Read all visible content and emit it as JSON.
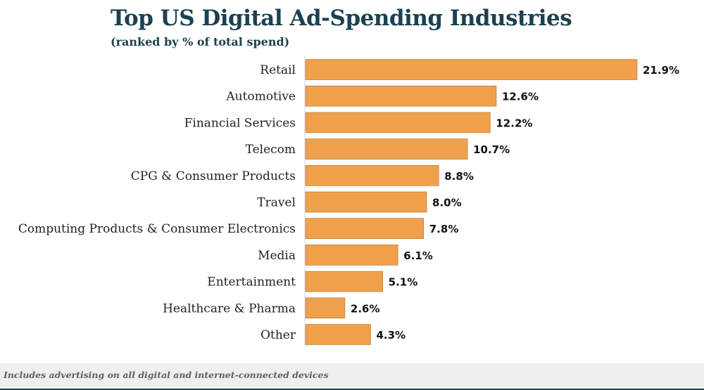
{
  "chart_data": {
    "type": "bar",
    "orientation": "horizontal",
    "title": "Top US Digital Ad-Spending Industries",
    "subtitle": "(ranked by % of total spend)",
    "categories": [
      "Retail",
      "Automotive",
      "Financial Services",
      "Telecom",
      "CPG & Consumer Products",
      "Travel",
      "Computing Products & Consumer Electronics",
      "Media",
      "Entertainment",
      "Healthcare & Pharma",
      "Other"
    ],
    "values": [
      21.9,
      12.6,
      12.2,
      10.7,
      8.8,
      8.0,
      7.8,
      6.1,
      5.1,
      2.6,
      4.3
    ],
    "value_labels": [
      "21.9%",
      "12.6%",
      "12.2%",
      "10.7%",
      "8.8%",
      "8.0%",
      "7.8%",
      "6.1%",
      "5.1%",
      "2.6%",
      "4.3%"
    ],
    "xlim": [
      0,
      21.9
    ],
    "grid": false,
    "legend": "none",
    "bar_color": "#f0a04b",
    "title_color": "#1b4152"
  },
  "footer": {
    "note": "Includes advertising on all digital and internet-connected devices"
  }
}
